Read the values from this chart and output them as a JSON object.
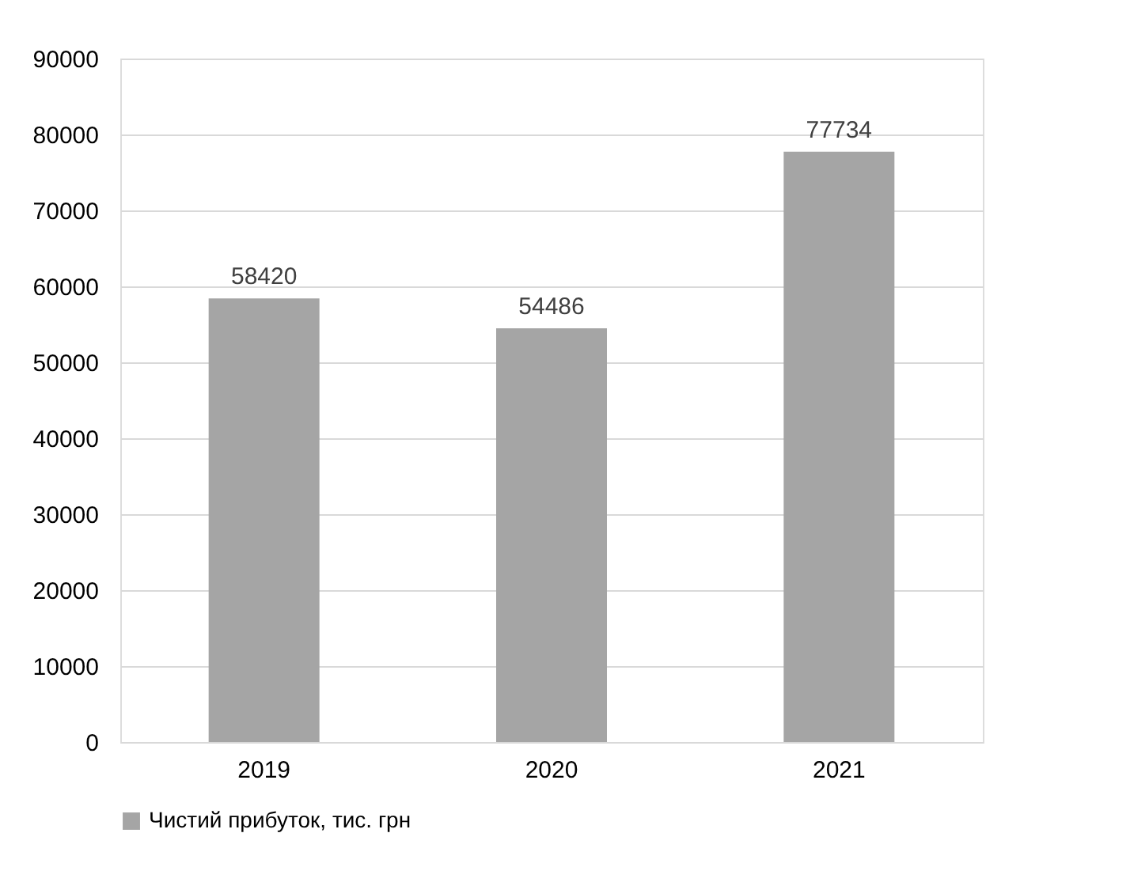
{
  "chart_data": {
    "type": "bar",
    "categories": [
      "2019",
      "2020",
      "2021"
    ],
    "series": [
      {
        "name": "Чистий прибуток, тис. грн",
        "color": "#a5a5a5",
        "values": [
          58420,
          54486,
          77734
        ]
      }
    ],
    "ylim": [
      0,
      90000
    ],
    "yticks": [
      0,
      10000,
      20000,
      30000,
      40000,
      50000,
      60000,
      70000,
      80000,
      90000
    ],
    "grid": "y",
    "legend": "bottom",
    "data_labels": true
  }
}
